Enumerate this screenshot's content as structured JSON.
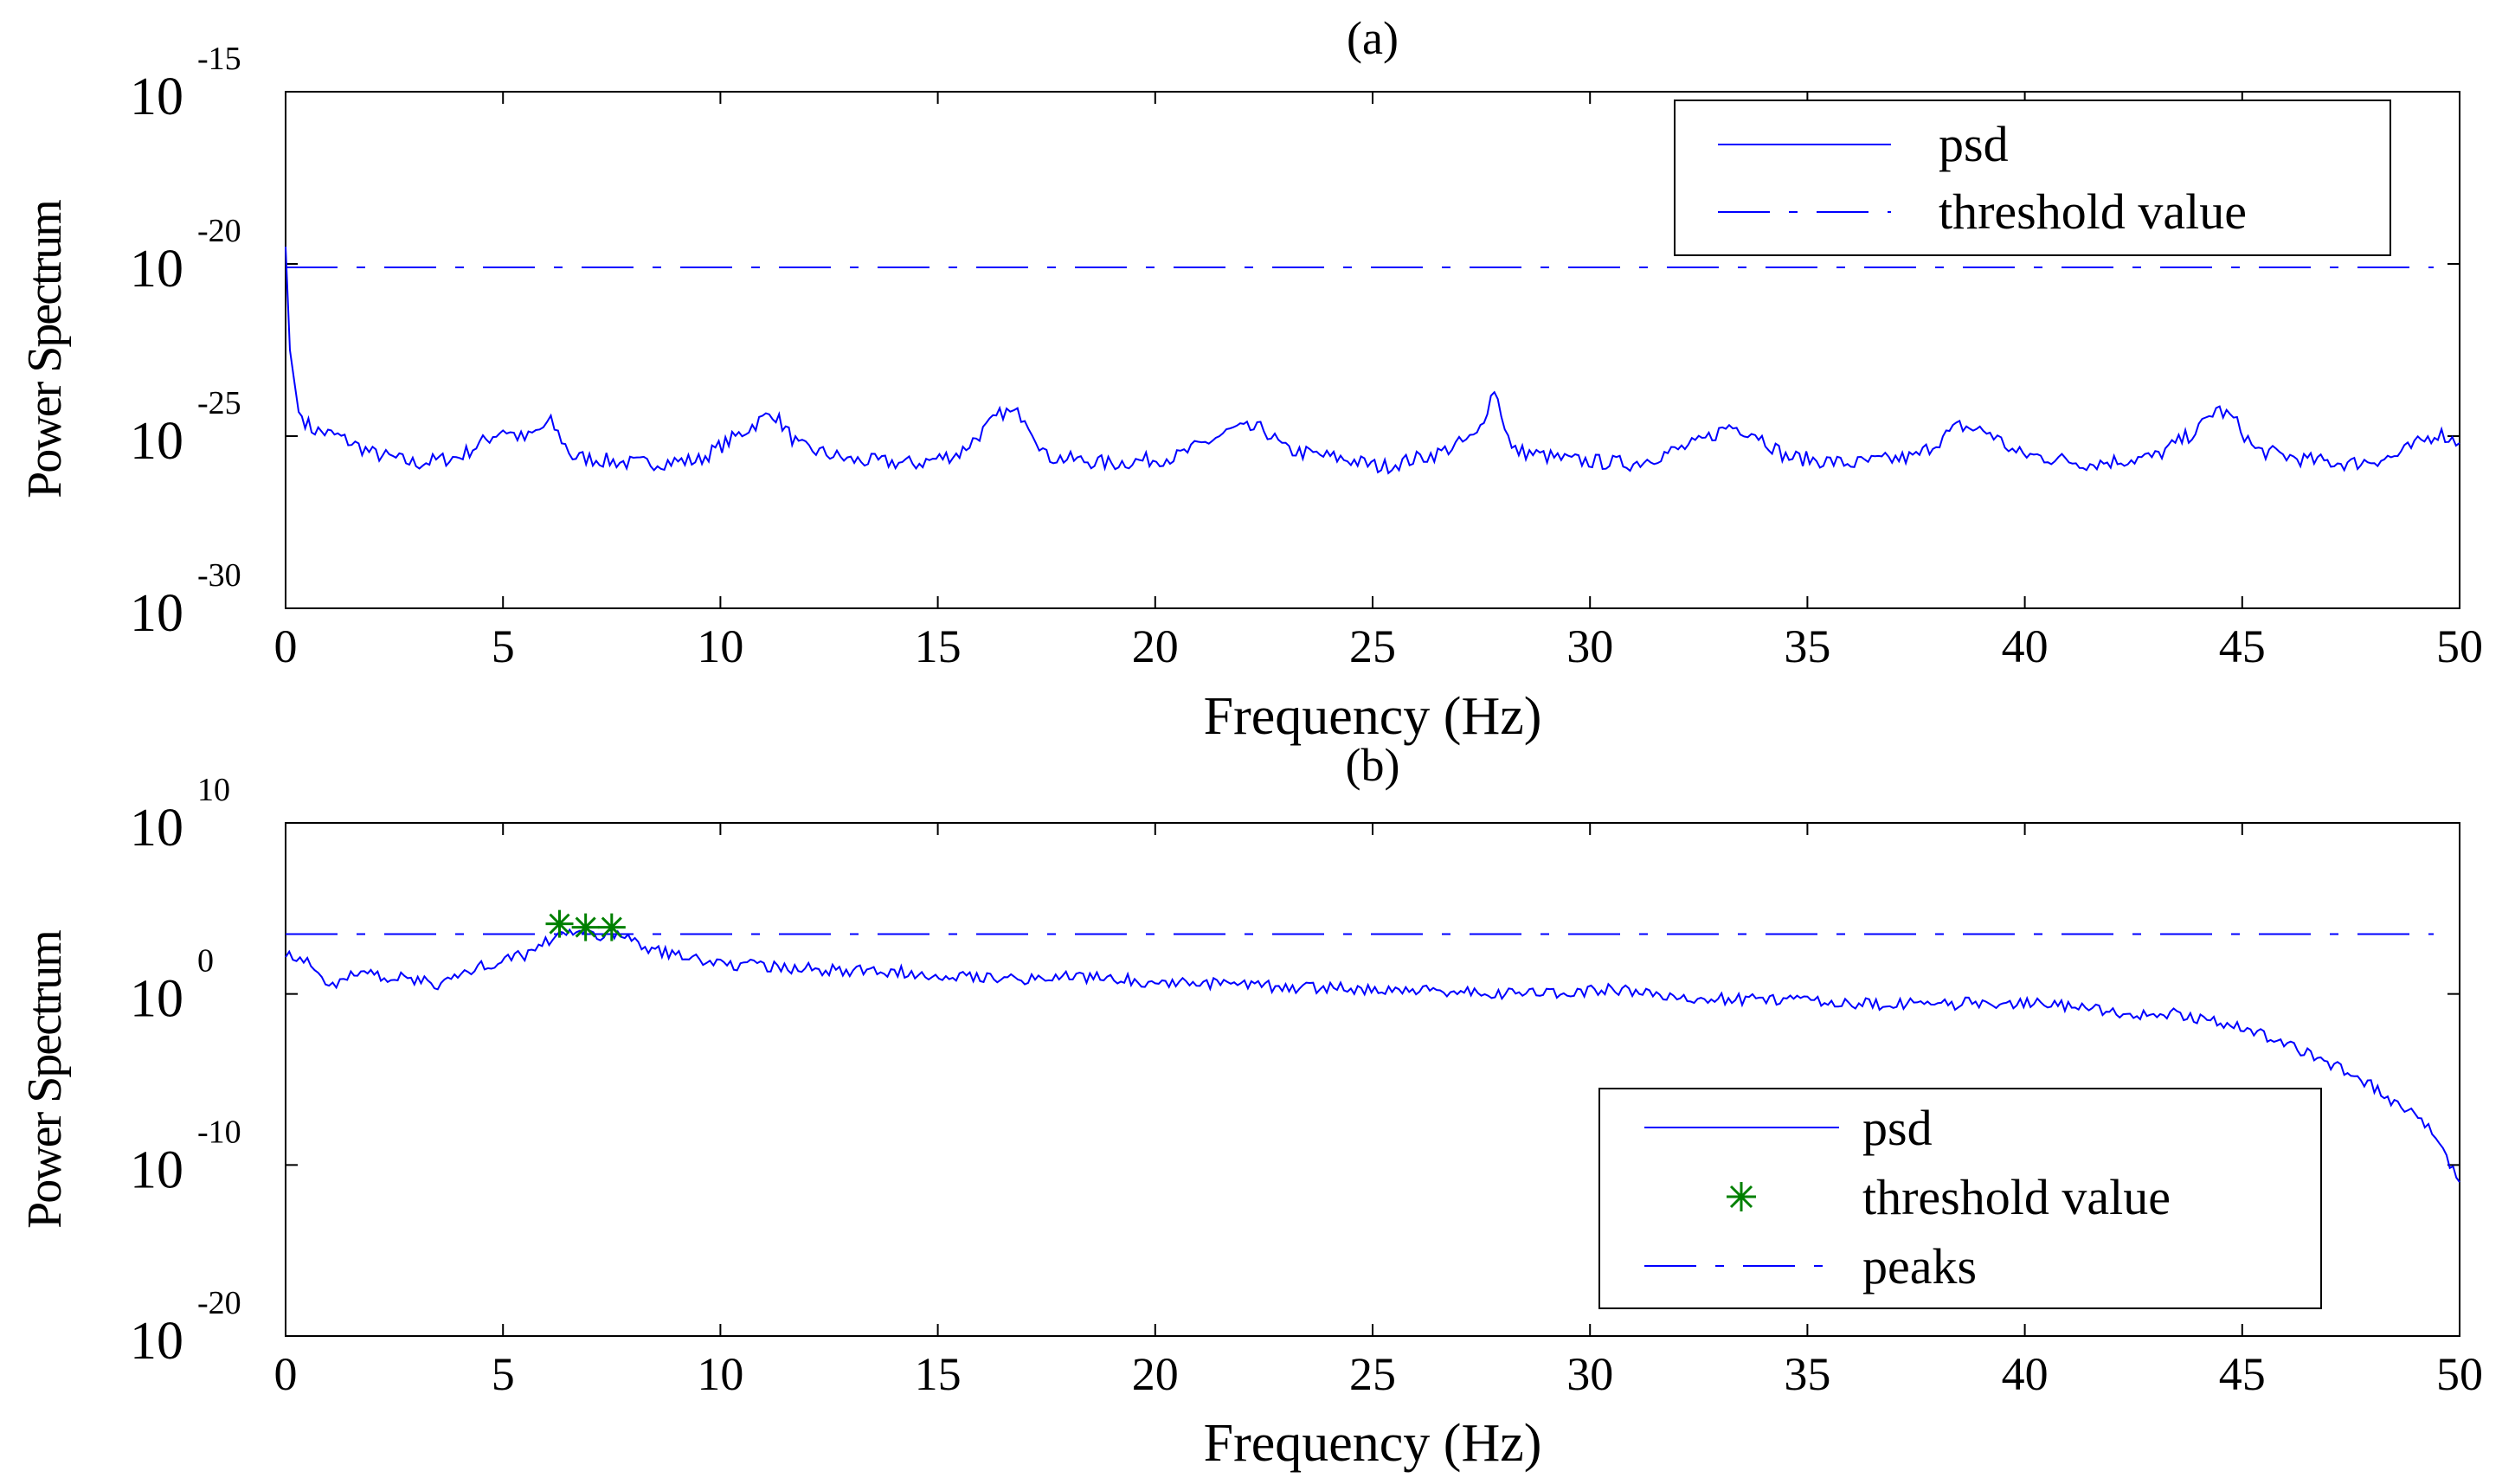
{
  "chart_data": [
    {
      "panel": "a",
      "type": "line",
      "title": "(a)",
      "xlabel": "Frequency (Hz)",
      "ylabel": "Power Spectrum",
      "yscale": "log",
      "xlim": [
        0,
        50
      ],
      "ylim_exp": [
        -30,
        -15
      ],
      "x_ticks": [
        0,
        5,
        10,
        15,
        20,
        25,
        30,
        35,
        40,
        45,
        50
      ],
      "y_ticks": [
        {
          "base": "10",
          "exp": "-30",
          "v": -30
        },
        {
          "base": "10",
          "exp": "-25",
          "v": -25
        },
        {
          "base": "10",
          "exp": "-20",
          "v": -20
        },
        {
          "base": "10",
          "exp": "-15",
          "v": -15
        }
      ],
      "legend": [
        {
          "label": "psd",
          "style": "solid"
        },
        {
          "label": "threshold value",
          "style": "dash-dot"
        }
      ],
      "threshold_log10": -20.1,
      "series": [
        {
          "name": "psd",
          "color": "#0000ff",
          "points_log10": [
            [
              0,
              -19.5
            ],
            [
              0.1,
              -22.5
            ],
            [
              0.3,
              -24.3
            ],
            [
              0.6,
              -24.8
            ],
            [
              1.2,
              -25.0
            ],
            [
              2,
              -25.5
            ],
            [
              3,
              -25.8
            ],
            [
              4,
              -25.6
            ],
            [
              5,
              -24.8
            ],
            [
              5.5,
              -25.1
            ],
            [
              6.1,
              -24.6
            ],
            [
              6.6,
              -25.6
            ],
            [
              8,
              -25.8
            ],
            [
              9.5,
              -25.7
            ],
            [
              10.5,
              -24.9
            ],
            [
              11.2,
              -24.3
            ],
            [
              11.8,
              -25.3
            ],
            [
              13,
              -25.7
            ],
            [
              14.5,
              -25.8
            ],
            [
              15.5,
              -25.5
            ],
            [
              16.5,
              -24.3
            ],
            [
              17,
              -24.4
            ],
            [
              17.5,
              -25.6
            ],
            [
              19,
              -25.8
            ],
            [
              20.5,
              -25.6
            ],
            [
              21.8,
              -24.8
            ],
            [
              22.5,
              -24.8
            ],
            [
              23,
              -25.4
            ],
            [
              24.5,
              -25.7
            ],
            [
              25.2,
              -25.9
            ],
            [
              26.5,
              -25.5
            ],
            [
              27.4,
              -25.0
            ],
            [
              27.8,
              -23.6
            ],
            [
              28.2,
              -25.4
            ],
            [
              29.5,
              -25.7
            ],
            [
              31,
              -25.8
            ],
            [
              32.5,
              -25.2
            ],
            [
              33.2,
              -24.7
            ],
            [
              33.8,
              -24.9
            ],
            [
              34.5,
              -25.6
            ],
            [
              36,
              -25.8
            ],
            [
              37.5,
              -25.6
            ],
            [
              38.5,
              -24.7
            ],
            [
              39.2,
              -24.9
            ],
            [
              39.8,
              -25.5
            ],
            [
              41.5,
              -25.8
            ],
            [
              43,
              -25.6
            ],
            [
              44,
              -24.8
            ],
            [
              44.4,
              -24.2
            ],
            [
              44.8,
              -24.5
            ],
            [
              45.3,
              -25.4
            ],
            [
              46.5,
              -25.7
            ],
            [
              47.5,
              -25.8
            ],
            [
              48.5,
              -25.6
            ],
            [
              49.5,
              -24.9
            ],
            [
              50,
              -25.2
            ]
          ]
        }
      ]
    },
    {
      "panel": "b",
      "type": "line",
      "title": "(b)",
      "xlabel": "Frequency (Hz)",
      "ylabel": "Power Spectrum",
      "yscale": "log",
      "xlim": [
        0,
        50
      ],
      "ylim_exp": [
        -20,
        10
      ],
      "x_ticks": [
        0,
        5,
        10,
        15,
        20,
        25,
        30,
        35,
        40,
        45,
        50
      ],
      "y_ticks": [
        {
          "base": "10",
          "exp": "-20",
          "v": -20
        },
        {
          "base": "10",
          "exp": "-10",
          "v": -10
        },
        {
          "base": "10",
          "exp": "0",
          "v": 0
        },
        {
          "base": "10",
          "exp": "10",
          "v": 10
        }
      ],
      "legend": [
        {
          "label": "psd",
          "style": "solid"
        },
        {
          "label": "threshold value",
          "style": "star"
        },
        {
          "label": "peaks",
          "style": "dash-dot"
        }
      ],
      "threshold_log10": 3.5,
      "peaks": [
        [
          6.3,
          4.1
        ],
        [
          6.9,
          3.9
        ],
        [
          7.5,
          3.9
        ]
      ],
      "series": [
        {
          "name": "psd",
          "color": "#0000ff",
          "points_log10": [
            [
              0,
              2.5
            ],
            [
              0.5,
              1.8
            ],
            [
              1,
              0.4
            ],
            [
              1.5,
              1.2
            ],
            [
              2.5,
              1.0
            ],
            [
              3.5,
              0.6
            ],
            [
              4.5,
              1.6
            ],
            [
              5.5,
              2.3
            ],
            [
              6.3,
              3.6
            ],
            [
              7,
              3.5
            ],
            [
              7.8,
              3.4
            ],
            [
              8.5,
              2.5
            ],
            [
              9.2,
              2.2
            ],
            [
              10,
              1.8
            ],
            [
              11,
              1.6
            ],
            [
              12.5,
              1.4
            ],
            [
              14,
              1.3
            ],
            [
              15.5,
              1.1
            ],
            [
              17,
              0.9
            ],
            [
              18.5,
              1.0
            ],
            [
              20,
              0.7
            ],
            [
              21.5,
              0.6
            ],
            [
              23,
              0.4
            ],
            [
              24.5,
              0.3
            ],
            [
              26,
              0.2
            ],
            [
              27.5,
              0.1
            ],
            [
              29,
              0.0
            ],
            [
              30.5,
              0.3
            ],
            [
              32,
              -0.2
            ],
            [
              33.5,
              -0.3
            ],
            [
              35,
              -0.3
            ],
            [
              36.5,
              -0.6
            ],
            [
              38,
              -0.6
            ],
            [
              39.5,
              -0.5
            ],
            [
              41,
              -0.7
            ],
            [
              42.5,
              -1.2
            ],
            [
              43.5,
              -1.2
            ],
            [
              44.5,
              -1.6
            ],
            [
              45.5,
              -2.4
            ],
            [
              46.5,
              -3.5
            ],
            [
              47.5,
              -4.6
            ],
            [
              48.5,
              -6.3
            ],
            [
              49.2,
              -7.5
            ],
            [
              49.7,
              -9.5
            ],
            [
              50,
              -11.0
            ]
          ]
        }
      ]
    }
  ]
}
